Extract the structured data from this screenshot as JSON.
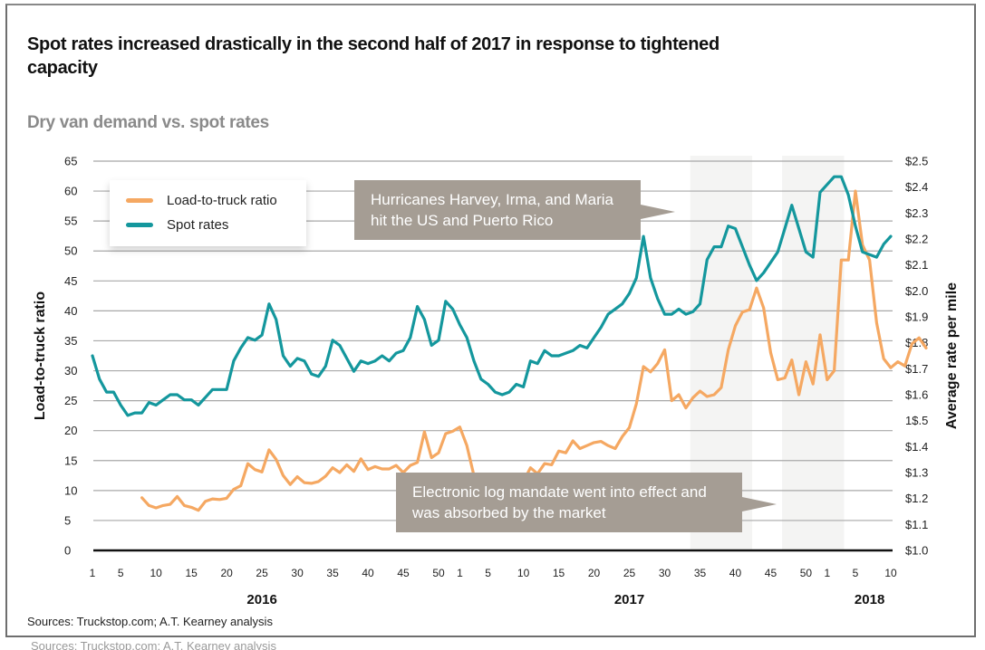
{
  "title": "Spot rates increased drastically in the second half of 2017 in response to tightened capacity",
  "subtitle": "Dry van demand vs. spot rates",
  "source": "Sources: Truckstop.com; A.T. Kearney analysis",
  "colors": {
    "load_to_truck": "#f5a862",
    "spot_rates": "#14979d",
    "callout_bg": "#a59d94",
    "shade": "#f4f4f3",
    "grid": "#a8a8a8"
  },
  "legend": {
    "items": [
      {
        "label": "Load-to-truck ratio",
        "series": "load_to_truck"
      },
      {
        "label": "Spot rates",
        "series": "spot_rates"
      }
    ]
  },
  "annotations": {
    "hurricanes": "Hurricanes Harvey, Irma, and Maria hit the US and Puerto Rico",
    "eld": "Electronic log mandate went into effect and was absorbed by the market"
  },
  "chart_data": {
    "type": "line",
    "title": "Dry van demand vs. spot rates",
    "xlabel": "",
    "ylabel_left": "Load-to-truck ratio",
    "ylabel_right": "Average rate per mile",
    "ylim_left": [
      0,
      65
    ],
    "ylim_right": [
      1.0,
      2.5
    ],
    "left_ticks": [
      "0",
      "5",
      "10",
      "15",
      "20",
      "25",
      "30",
      "35",
      "40",
      "45",
      "50",
      "55",
      "60",
      "65"
    ],
    "right_ticks": [
      "$1.0",
      "$1.1",
      "$1.2",
      "$1.3",
      "$1.4",
      "1$.5",
      "$1.6",
      "$1.7",
      "$1.8",
      "$1.9",
      "$2.0",
      "$2.1",
      "$2.2",
      "$2.3",
      "$2.4",
      "$2.5"
    ],
    "x_ticks": [
      {
        "index": 0,
        "label": "1"
      },
      {
        "index": 4,
        "label": "5"
      },
      {
        "index": 9,
        "label": "10"
      },
      {
        "index": 14,
        "label": "15"
      },
      {
        "index": 19,
        "label": "20"
      },
      {
        "index": 24,
        "label": "25"
      },
      {
        "index": 29,
        "label": "30"
      },
      {
        "index": 34,
        "label": "35"
      },
      {
        "index": 39,
        "label": "40"
      },
      {
        "index": 44,
        "label": "45"
      },
      {
        "index": 49,
        "label": "50"
      },
      {
        "index": 52,
        "label": "1"
      },
      {
        "index": 56,
        "label": "5"
      },
      {
        "index": 61,
        "label": "10"
      },
      {
        "index": 66,
        "label": "15"
      },
      {
        "index": 71,
        "label": "20"
      },
      {
        "index": 76,
        "label": "25"
      },
      {
        "index": 81,
        "label": "30"
      },
      {
        "index": 86,
        "label": "35"
      },
      {
        "index": 91,
        "label": "40"
      },
      {
        "index": 96,
        "label": "45"
      },
      {
        "index": 101,
        "label": "50"
      },
      {
        "index": 104,
        "label": "1"
      },
      {
        "index": 108,
        "label": "5"
      },
      {
        "index": 113,
        "label": "10"
      }
    ],
    "year_labels": [
      {
        "label": "2016",
        "index": 24
      },
      {
        "label": "2017",
        "index": 76
      },
      {
        "label": "2018",
        "index": 110
      }
    ],
    "x_count": 114,
    "shaded_ranges": [
      [
        85,
        93
      ],
      [
        98,
        106
      ]
    ],
    "grid": true,
    "legend_position": "top-left",
    "series": [
      {
        "name": "Load-to-truck ratio",
        "axis": "left",
        "start_index": 7,
        "values": [
          8.8,
          7.5,
          7.1,
          7.5,
          7.7,
          9.0,
          7.5,
          7.2,
          6.7,
          8.2,
          8.6,
          8.5,
          8.7,
          10.2,
          10.8,
          14.5,
          13.5,
          13.1,
          16.8,
          15.2,
          12.5,
          11.0,
          12.3,
          11.3,
          11.2,
          11.5,
          12.4,
          13.8,
          13.0,
          14.3,
          13.2,
          15.3,
          13.5,
          14.0,
          13.6,
          13.6,
          14.2,
          13.0,
          14.2,
          14.7,
          19.8,
          15.5,
          16.3,
          19.5,
          19.9,
          20.6,
          17.5,
          12.5,
          9.5,
          8.0,
          7.5,
          7.8,
          9.0,
          10.8,
          11.5,
          13.8,
          12.8,
          14.5,
          14.3,
          16.6,
          16.3,
          18.3,
          17.0,
          17.5,
          18.0,
          18.2,
          17.5,
          17.0,
          19.0,
          20.5,
          24.5,
          30.7,
          29.8,
          31.2,
          33.5,
          25.0,
          26.0,
          23.8,
          25.5,
          26.6,
          25.7,
          26.0,
          27.2,
          33.5,
          37.5,
          39.8,
          40.2,
          43.8,
          40.5,
          33.0,
          28.5,
          28.8,
          31.8,
          26.0,
          31.5,
          27.8,
          36.0,
          28.5,
          30.0,
          48.5,
          48.5,
          60.0,
          51.0,
          48.5,
          38.0,
          32.0,
          30.5,
          31.5,
          30.8,
          34.5,
          35.5,
          33.8
        ]
      },
      {
        "name": "Spot rates",
        "axis": "right",
        "start_index": 0,
        "values": [
          1.75,
          1.66,
          1.61,
          1.61,
          1.56,
          1.52,
          1.53,
          1.53,
          1.57,
          1.56,
          1.58,
          1.6,
          1.6,
          1.58,
          1.58,
          1.56,
          1.59,
          1.62,
          1.62,
          1.62,
          1.73,
          1.78,
          1.82,
          1.81,
          1.83,
          1.95,
          1.89,
          1.75,
          1.71,
          1.74,
          1.73,
          1.68,
          1.67,
          1.71,
          1.81,
          1.79,
          1.74,
          1.69,
          1.73,
          1.72,
          1.73,
          1.75,
          1.73,
          1.76,
          1.77,
          1.82,
          1.94,
          1.89,
          1.79,
          1.81,
          1.96,
          1.93,
          1.87,
          1.82,
          1.73,
          1.66,
          1.64,
          1.61,
          1.6,
          1.61,
          1.64,
          1.63,
          1.73,
          1.72,
          1.77,
          1.75,
          1.75,
          1.76,
          1.77,
          1.79,
          1.78,
          1.82,
          1.86,
          1.91,
          1.93,
          1.95,
          1.99,
          2.05,
          2.21,
          2.05,
          1.97,
          1.91,
          1.91,
          1.93,
          1.91,
          1.92,
          1.95,
          2.12,
          2.17,
          2.17,
          2.25,
          2.24,
          2.17,
          2.1,
          2.04,
          2.07,
          2.11,
          2.15,
          2.24,
          2.33,
          2.24,
          2.15,
          2.13,
          2.38,
          2.41,
          2.44,
          2.44,
          2.37,
          2.25,
          2.15,
          2.14,
          2.13,
          2.18,
          2.21
        ]
      }
    ]
  }
}
